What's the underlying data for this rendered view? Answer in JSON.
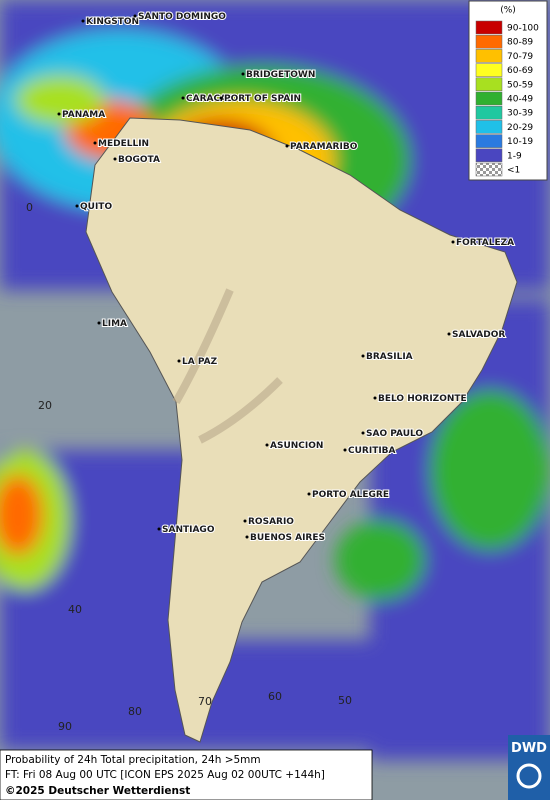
{
  "cities": [
    "KINGSTON",
    "SANTO DOMINGO",
    "BRIDGETOWN",
    "PANAMA",
    "CARACAS",
    "PORT OF SPAIN",
    "MEDELLIN",
    "BOGOTA",
    "PARAMARIBO",
    "QUITO",
    "FORTALEZA",
    "LIMA",
    "SALVADOR",
    "BRASILIA",
    "LA PAZ",
    "BELO HORIZONTE",
    "ASUNCION",
    "SAO PAULO",
    "CURITIBA",
    "PORTO ALEGRE",
    "ROSARIO",
    "SANTIAGO",
    "BUENOS AIRES"
  ],
  "latitude_labels": [
    "0",
    "20",
    "40"
  ],
  "longitude_labels": [
    "90",
    "80",
    "70",
    "60",
    "50"
  ],
  "legend": {
    "title": "(%)",
    "items": [
      {
        "label": "90-100",
        "color": "#c80000"
      },
      {
        "label": "80-89",
        "color": "#ff6a00"
      },
      {
        "label": "70-79",
        "color": "#ffc000"
      },
      {
        "label": "60-69",
        "color": "#ffff20"
      },
      {
        "label": "50-59",
        "color": "#a8e020"
      },
      {
        "label": "40-49",
        "color": "#30b030"
      },
      {
        "label": "30-39",
        "color": "#20c8a0"
      },
      {
        "label": "20-29",
        "color": "#20c0e8"
      },
      {
        "label": "10-19",
        "color": "#2a7ae0"
      },
      {
        "label": "1-9",
        "color": "#4a46c0"
      },
      {
        "label": "<1",
        "color": "#c8c8c8"
      }
    ]
  },
  "footer": {
    "line1": "Probability of 24h Total precipitation, 24h >5mm",
    "line2": "FT: Fri 08 Aug 00 UTC [ICON EPS 2025 Aug 02 00UTC +144h]",
    "line3": "©2025 Deutscher Wetterdienst"
  },
  "logo": "DWD"
}
